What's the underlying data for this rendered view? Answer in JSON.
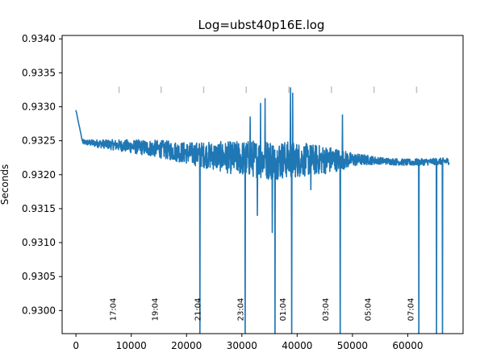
{
  "chart_data": {
    "type": "line",
    "title": "Log=ubst40p16E.log",
    "xlabel": "",
    "ylabel": "Seconds",
    "xlim": [
      -2500,
      70000
    ],
    "ylim": [
      0.92966,
      0.93405
    ],
    "x_ticks": [
      0,
      10000,
      20000,
      30000,
      40000,
      50000,
      60000
    ],
    "x_tick_labels": [
      "0",
      "10000",
      "20000",
      "30000",
      "40000",
      "50000",
      "60000"
    ],
    "y_ticks": [
      0.93,
      0.9305,
      0.931,
      0.9315,
      0.932,
      0.9325,
      0.933,
      0.9335,
      0.934
    ],
    "y_tick_labels": [
      "0.9300",
      "0.9305",
      "0.9310",
      "0.9315",
      "0.9320",
      "0.9325",
      "0.9330",
      "0.9335",
      "0.9340"
    ],
    "grid": false,
    "series_color": "#1f77b4",
    "marker_color": "#c0c0c0",
    "hour_markers": [
      {
        "x": 7800,
        "label": "17:04"
      },
      {
        "x": 15400,
        "label": "19:04"
      },
      {
        "x": 23100,
        "label": "21:04"
      },
      {
        "x": 30800,
        "label": "23:04"
      },
      {
        "x": 38500,
        "label": "01:04"
      },
      {
        "x": 46200,
        "label": "03:04"
      },
      {
        "x": 53900,
        "label": "05:04"
      },
      {
        "x": 61600,
        "label": "07:04"
      }
    ],
    "hour_tick_level": 0.93325,
    "trend": [
      {
        "x": 0,
        "y": 0.93295
      },
      {
        "x": 1200,
        "y": 0.93248
      },
      {
        "x": 8000,
        "y": 0.93243
      },
      {
        "x": 15000,
        "y": 0.93238
      },
      {
        "x": 20000,
        "y": 0.93232
      },
      {
        "x": 28000,
        "y": 0.93225
      },
      {
        "x": 36000,
        "y": 0.93222
      },
      {
        "x": 45000,
        "y": 0.93222
      },
      {
        "x": 52000,
        "y": 0.93222
      },
      {
        "x": 56000,
        "y": 0.9322
      },
      {
        "x": 60000,
        "y": 0.93218
      },
      {
        "x": 67500,
        "y": 0.9322
      }
    ],
    "noise_amplitude": [
      {
        "x": 0,
        "y": 3e-05
      },
      {
        "x": 10000,
        "y": 0.0001
      },
      {
        "x": 20000,
        "y": 0.00016
      },
      {
        "x": 28000,
        "y": 0.00024
      },
      {
        "x": 35000,
        "y": 0.0003
      },
      {
        "x": 40000,
        "y": 0.00026
      },
      {
        "x": 46000,
        "y": 0.0002
      },
      {
        "x": 50000,
        "y": 0.0001
      },
      {
        "x": 55000,
        "y": 5e-05
      },
      {
        "x": 67500,
        "y": 5e-05
      }
    ],
    "spikes": [
      {
        "x": 31500,
        "y": 0.93285
      },
      {
        "x": 33400,
        "y": 0.93305
      },
      {
        "x": 34200,
        "y": 0.93312
      },
      {
        "x": 38800,
        "y": 0.93328
      },
      {
        "x": 39200,
        "y": 0.9332
      },
      {
        "x": 48200,
        "y": 0.93288
      },
      {
        "x": 35500,
        "y": 0.93115
      },
      {
        "x": 32800,
        "y": 0.9314
      },
      {
        "x": 42500,
        "y": 0.93178
      }
    ],
    "dropouts": [
      22400,
      30600,
      36000,
      39000,
      47800,
      62000,
      65200,
      66300
    ],
    "x_min": 0,
    "x_max": 67500
  }
}
